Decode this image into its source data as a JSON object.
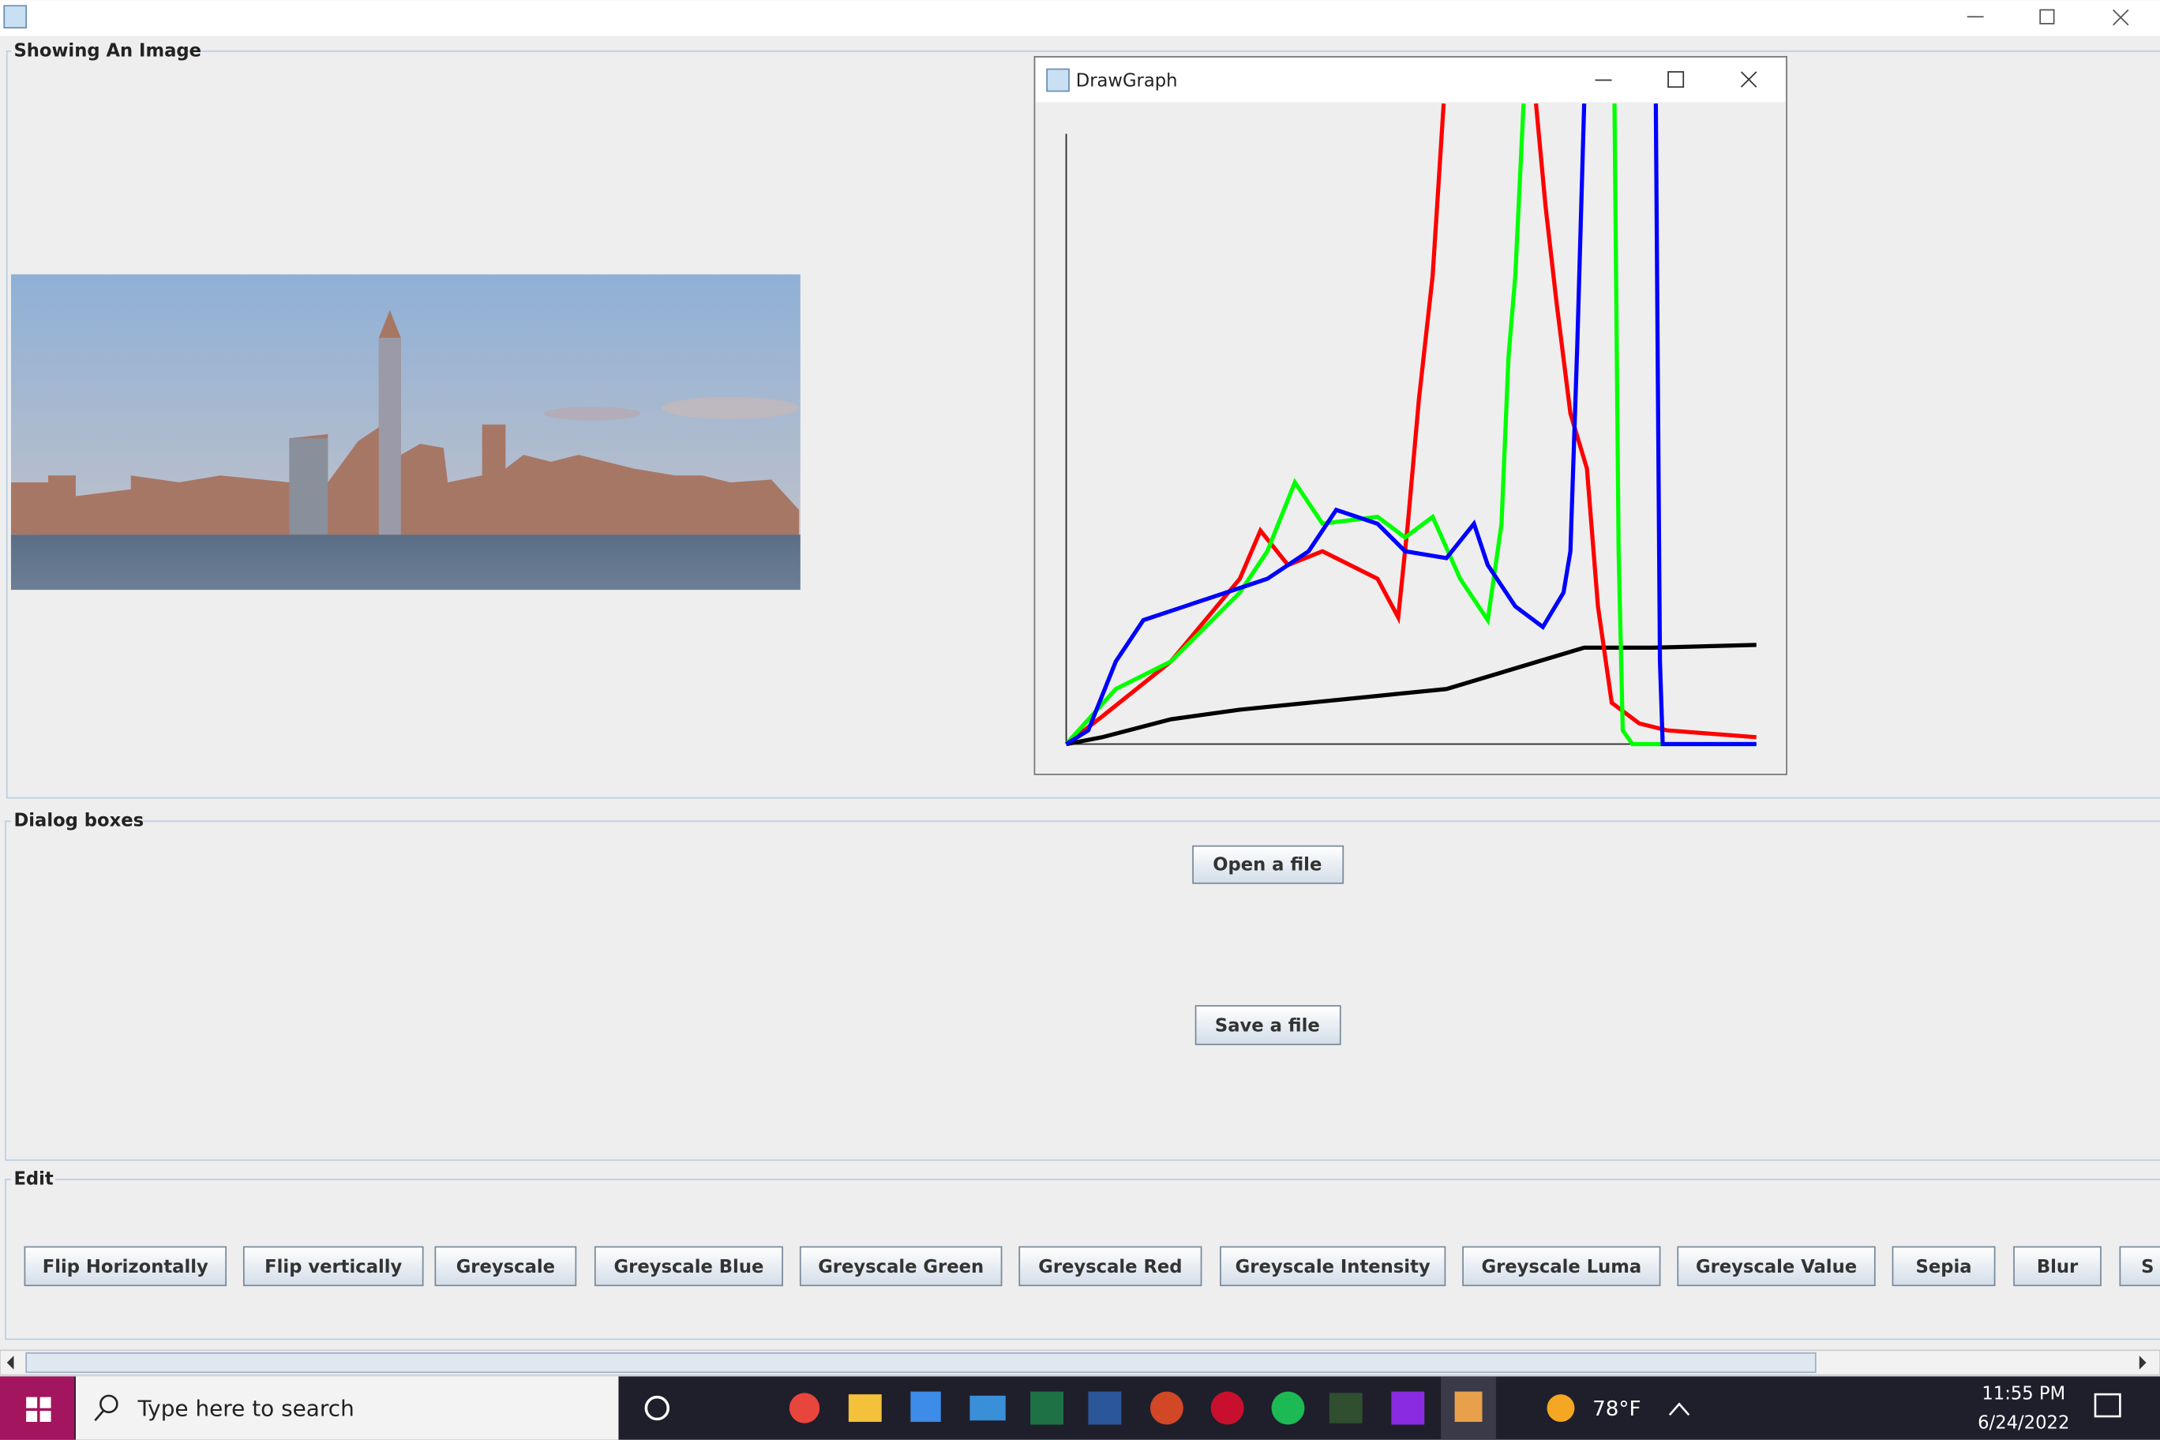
{
  "image_panel": {
    "title": "Showing An Image"
  },
  "graph_window": {
    "title": "DrawGraph"
  },
  "dialog_panel": {
    "title": "Dialog boxes",
    "buttons": [
      "Open a file",
      "Save a file"
    ]
  },
  "edit_panel": {
    "title": "Edit",
    "buttons": [
      "Flip Horizontally",
      "Flip vertically",
      "Greyscale",
      "Greyscale Blue",
      "Greyscale Green",
      "Greyscale Red",
      "Greyscale Intensity",
      "Greyscale Luma",
      "Greyscale Value",
      "Sepia",
      "Blur",
      "S"
    ]
  },
  "taskbar": {
    "search": "Type here to search",
    "weather": "78°F",
    "time": "11:55 PM",
    "date": "6/24/2022"
  }
}
